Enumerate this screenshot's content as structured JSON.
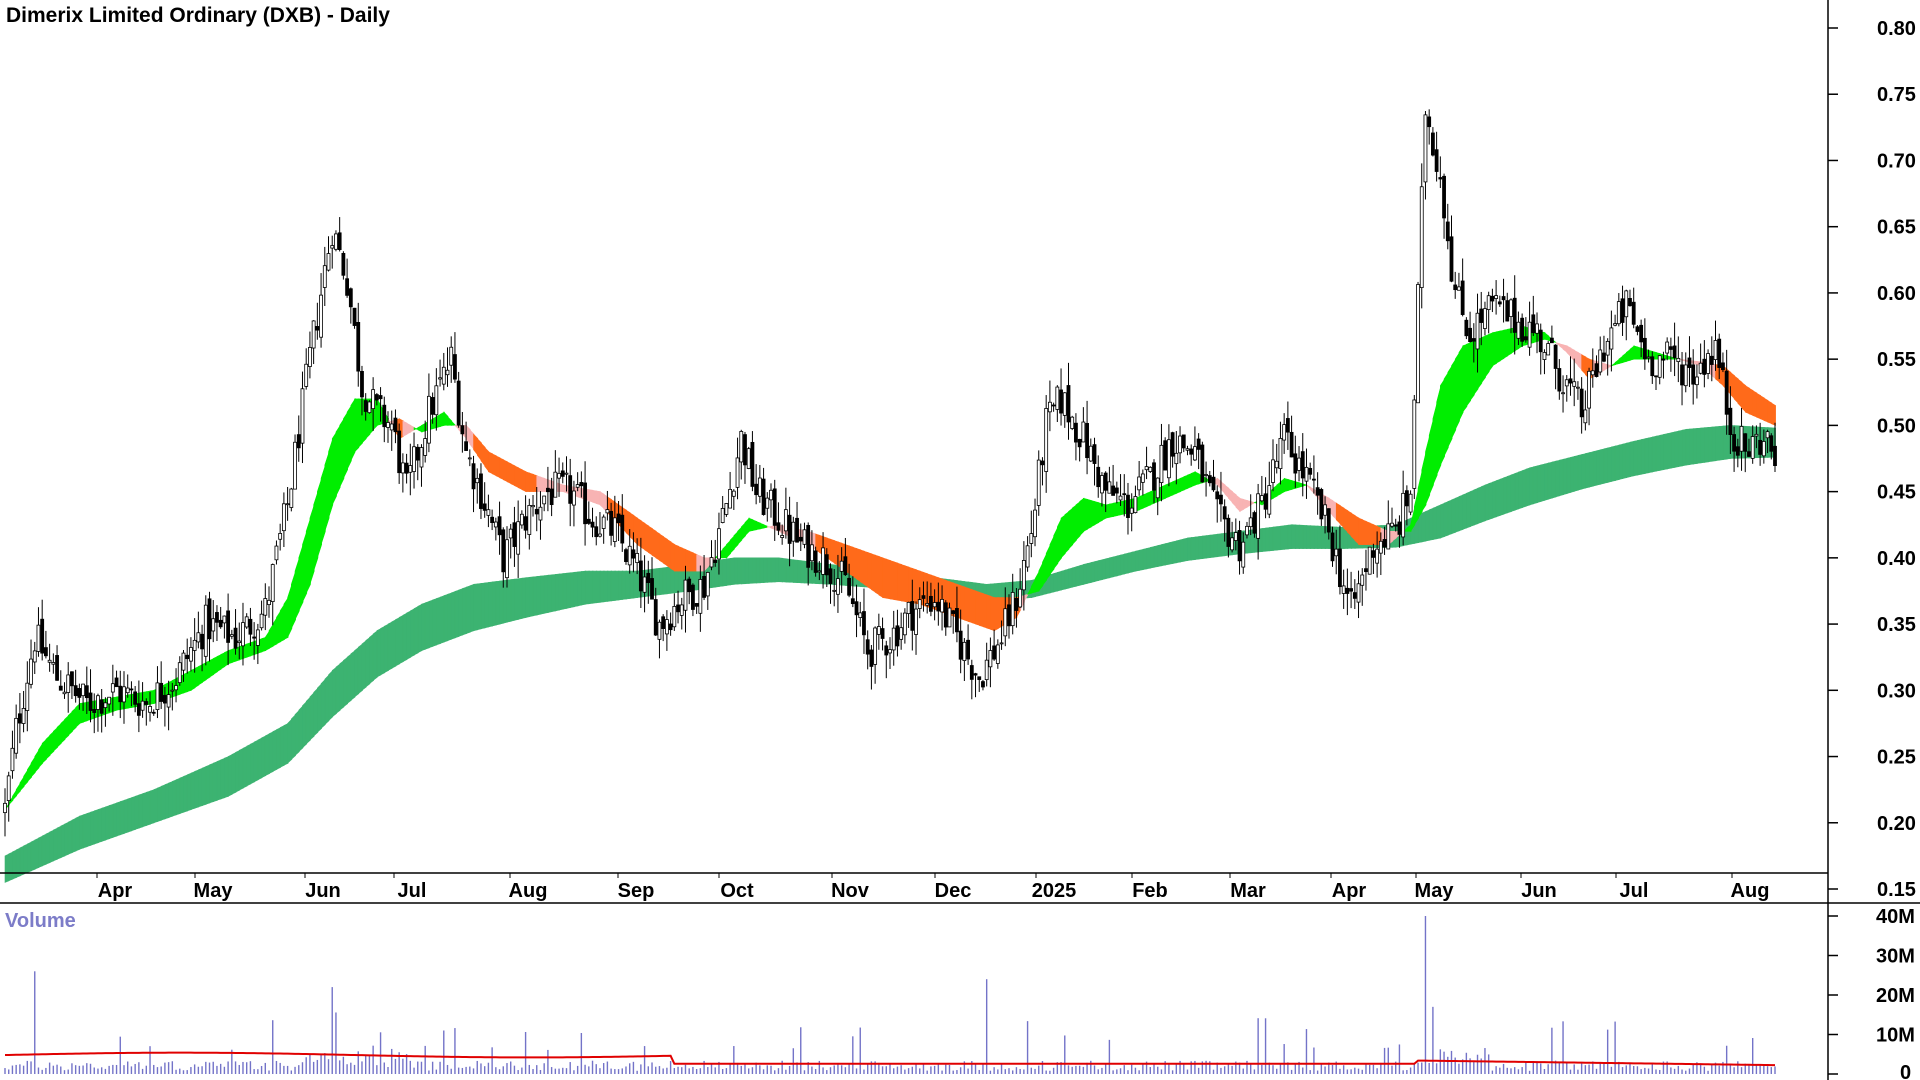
{
  "title": "Dimerix Limited Ordinary (DXB) - Daily",
  "volume_label": "Volume",
  "colors": {
    "candle": "#000000",
    "short_up": "#00ee00",
    "short_down": "#ff6a1a",
    "short_down_light": "#f8b3b3",
    "long_up": "#3cb371",
    "long_down": "#ff6a1a",
    "volume_bar": "#7373c8",
    "volume_avg": "#e00000"
  },
  "chart_data": [
    {
      "type": "candlestick",
      "title": "Dimerix Limited Ordinary (DXB) - Daily",
      "y_ticks": [
        "0.80",
        "0.75",
        "0.70",
        "0.65",
        "0.60",
        "0.55",
        "0.50",
        "0.45",
        "0.40",
        "0.35",
        "0.30",
        "0.25",
        "0.20",
        "0.15"
      ],
      "ylim": [
        0.125,
        0.82
      ],
      "x_ticks": [
        "Apr",
        "May",
        "Jun",
        "Jul",
        "Aug",
        "Sep",
        "Oct",
        "Nov",
        "Dec",
        "2025",
        "Feb",
        "Mar",
        "Apr",
        "May",
        "Jun",
        "Jul",
        "Aug"
      ],
      "close_points": [
        {
          "x": 0,
          "y": 0.21
        },
        {
          "x": 3,
          "y": 0.27
        },
        {
          "x": 8,
          "y": 0.34
        },
        {
          "x": 14,
          "y": 0.31
        },
        {
          "x": 22,
          "y": 0.29
        },
        {
          "x": 30,
          "y": 0.3
        },
        {
          "x": 38,
          "y": 0.29
        },
        {
          "x": 46,
          "y": 0.31
        },
        {
          "x": 54,
          "y": 0.35
        },
        {
          "x": 62,
          "y": 0.34
        },
        {
          "x": 70,
          "y": 0.36
        },
        {
          "x": 76,
          "y": 0.44
        },
        {
          "x": 82,
          "y": 0.55
        },
        {
          "x": 88,
          "y": 0.65
        },
        {
          "x": 92,
          "y": 0.61
        },
        {
          "x": 96,
          "y": 0.53
        },
        {
          "x": 100,
          "y": 0.51
        },
        {
          "x": 104,
          "y": 0.5
        },
        {
          "x": 108,
          "y": 0.45
        },
        {
          "x": 114,
          "y": 0.51
        },
        {
          "x": 120,
          "y": 0.55
        },
        {
          "x": 124,
          "y": 0.48
        },
        {
          "x": 128,
          "y": 0.45
        },
        {
          "x": 134,
          "y": 0.4
        },
        {
          "x": 140,
          "y": 0.43
        },
        {
          "x": 146,
          "y": 0.45
        },
        {
          "x": 152,
          "y": 0.45
        },
        {
          "x": 158,
          "y": 0.43
        },
        {
          "x": 164,
          "y": 0.42
        },
        {
          "x": 170,
          "y": 0.39
        },
        {
          "x": 176,
          "y": 0.35
        },
        {
          "x": 182,
          "y": 0.37
        },
        {
          "x": 188,
          "y": 0.38
        },
        {
          "x": 194,
          "y": 0.44
        },
        {
          "x": 198,
          "y": 0.49
        },
        {
          "x": 202,
          "y": 0.45
        },
        {
          "x": 208,
          "y": 0.43
        },
        {
          "x": 214,
          "y": 0.41
        },
        {
          "x": 220,
          "y": 0.4
        },
        {
          "x": 226,
          "y": 0.38
        },
        {
          "x": 232,
          "y": 0.33
        },
        {
          "x": 238,
          "y": 0.34
        },
        {
          "x": 244,
          "y": 0.36
        },
        {
          "x": 250,
          "y": 0.37
        },
        {
          "x": 256,
          "y": 0.34
        },
        {
          "x": 262,
          "y": 0.31
        },
        {
          "x": 268,
          "y": 0.34
        },
        {
          "x": 272,
          "y": 0.37
        },
        {
          "x": 276,
          "y": 0.42
        },
        {
          "x": 280,
          "y": 0.5
        },
        {
          "x": 284,
          "y": 0.52
        },
        {
          "x": 290,
          "y": 0.49
        },
        {
          "x": 296,
          "y": 0.45
        },
        {
          "x": 302,
          "y": 0.44
        },
        {
          "x": 308,
          "y": 0.46
        },
        {
          "x": 314,
          "y": 0.49
        },
        {
          "x": 320,
          "y": 0.48
        },
        {
          "x": 326,
          "y": 0.43
        },
        {
          "x": 332,
          "y": 0.41
        },
        {
          "x": 338,
          "y": 0.44
        },
        {
          "x": 344,
          "y": 0.49
        },
        {
          "x": 350,
          "y": 0.46
        },
        {
          "x": 356,
          "y": 0.42
        },
        {
          "x": 362,
          "y": 0.36
        },
        {
          "x": 368,
          "y": 0.41
        },
        {
          "x": 374,
          "y": 0.42
        },
        {
          "x": 378,
          "y": 0.45
        },
        {
          "x": 382,
          "y": 0.74
        },
        {
          "x": 386,
          "y": 0.69
        },
        {
          "x": 390,
          "y": 0.6
        },
        {
          "x": 394,
          "y": 0.57
        },
        {
          "x": 400,
          "y": 0.59
        },
        {
          "x": 406,
          "y": 0.58
        },
        {
          "x": 412,
          "y": 0.57
        },
        {
          "x": 418,
          "y": 0.54
        },
        {
          "x": 424,
          "y": 0.51
        },
        {
          "x": 430,
          "y": 0.56
        },
        {
          "x": 436,
          "y": 0.59
        },
        {
          "x": 442,
          "y": 0.55
        },
        {
          "x": 448,
          "y": 0.55
        },
        {
          "x": 454,
          "y": 0.54
        },
        {
          "x": 460,
          "y": 0.56
        },
        {
          "x": 464,
          "y": 0.5
        },
        {
          "x": 468,
          "y": 0.48
        },
        {
          "x": 472,
          "y": 0.49
        },
        {
          "x": 476,
          "y": 0.48
        }
      ],
      "short_ribbon": [
        {
          "x": 0,
          "a": 0.21,
          "b": 0.21
        },
        {
          "x": 10,
          "a": 0.26,
          "b": 0.245
        },
        {
          "x": 20,
          "a": 0.29,
          "b": 0.275
        },
        {
          "x": 30,
          "a": 0.295,
          "b": 0.285
        },
        {
          "x": 40,
          "a": 0.3,
          "b": 0.29
        },
        {
          "x": 50,
          "a": 0.315,
          "b": 0.3
        },
        {
          "x": 60,
          "a": 0.33,
          "b": 0.32
        },
        {
          "x": 70,
          "a": 0.34,
          "b": 0.33
        },
        {
          "x": 76,
          "a": 0.37,
          "b": 0.34
        },
        {
          "x": 82,
          "a": 0.43,
          "b": 0.38
        },
        {
          "x": 88,
          "a": 0.49,
          "b": 0.44
        },
        {
          "x": 94,
          "a": 0.52,
          "b": 0.48
        },
        {
          "x": 100,
          "a": 0.52,
          "b": 0.5
        },
        {
          "x": 106,
          "a": 0.49,
          "b": 0.505
        },
        {
          "x": 112,
          "a": 0.5,
          "b": 0.495
        },
        {
          "x": 118,
          "a": 0.51,
          "b": 0.5
        },
        {
          "x": 124,
          "a": 0.49,
          "b": 0.5
        },
        {
          "x": 130,
          "a": 0.465,
          "b": 0.48
        },
        {
          "x": 140,
          "a": 0.45,
          "b": 0.465
        },
        {
          "x": 150,
          "a": 0.45,
          "b": 0.455
        },
        {
          "x": 160,
          "a": 0.44,
          "b": 0.45
        },
        {
          "x": 170,
          "a": 0.41,
          "b": 0.43
        },
        {
          "x": 180,
          "a": 0.39,
          "b": 0.41
        },
        {
          "x": 188,
          "a": 0.39,
          "b": 0.4
        },
        {
          "x": 194,
          "a": 0.41,
          "b": 0.4
        },
        {
          "x": 200,
          "a": 0.43,
          "b": 0.42
        },
        {
          "x": 208,
          "a": 0.42,
          "b": 0.425
        },
        {
          "x": 216,
          "a": 0.41,
          "b": 0.42
        },
        {
          "x": 226,
          "a": 0.39,
          "b": 0.41
        },
        {
          "x": 236,
          "a": 0.37,
          "b": 0.4
        },
        {
          "x": 246,
          "a": 0.365,
          "b": 0.39
        },
        {
          "x": 256,
          "a": 0.355,
          "b": 0.38
        },
        {
          "x": 266,
          "a": 0.345,
          "b": 0.37
        },
        {
          "x": 272,
          "a": 0.355,
          "b": 0.37
        },
        {
          "x": 278,
          "a": 0.39,
          "b": 0.375
        },
        {
          "x": 284,
          "a": 0.43,
          "b": 0.4
        },
        {
          "x": 290,
          "a": 0.445,
          "b": 0.42
        },
        {
          "x": 296,
          "a": 0.44,
          "b": 0.43
        },
        {
          "x": 304,
          "a": 0.445,
          "b": 0.435
        },
        {
          "x": 312,
          "a": 0.455,
          "b": 0.445
        },
        {
          "x": 320,
          "a": 0.465,
          "b": 0.455
        },
        {
          "x": 326,
          "a": 0.455,
          "b": 0.46
        },
        {
          "x": 332,
          "a": 0.435,
          "b": 0.445
        },
        {
          "x": 338,
          "a": 0.445,
          "b": 0.44
        },
        {
          "x": 344,
          "a": 0.46,
          "b": 0.45
        },
        {
          "x": 350,
          "a": 0.455,
          "b": 0.455
        },
        {
          "x": 356,
          "a": 0.435,
          "b": 0.445
        },
        {
          "x": 364,
          "a": 0.41,
          "b": 0.43
        },
        {
          "x": 372,
          "a": 0.41,
          "b": 0.42
        },
        {
          "x": 378,
          "a": 0.425,
          "b": 0.42
        },
        {
          "x": 382,
          "a": 0.48,
          "b": 0.44
        },
        {
          "x": 386,
          "a": 0.53,
          "b": 0.47
        },
        {
          "x": 392,
          "a": 0.56,
          "b": 0.51
        },
        {
          "x": 400,
          "a": 0.57,
          "b": 0.545
        },
        {
          "x": 408,
          "a": 0.575,
          "b": 0.56
        },
        {
          "x": 414,
          "a": 0.57,
          "b": 0.565
        },
        {
          "x": 420,
          "a": 0.555,
          "b": 0.56
        },
        {
          "x": 426,
          "a": 0.535,
          "b": 0.55
        },
        {
          "x": 432,
          "a": 0.545,
          "b": 0.545
        },
        {
          "x": 438,
          "a": 0.56,
          "b": 0.55
        },
        {
          "x": 444,
          "a": 0.555,
          "b": 0.55
        },
        {
          "x": 450,
          "a": 0.55,
          "b": 0.55
        },
        {
          "x": 456,
          "a": 0.545,
          "b": 0.548
        },
        {
          "x": 462,
          "a": 0.53,
          "b": 0.545
        },
        {
          "x": 468,
          "a": 0.51,
          "b": 0.53
        },
        {
          "x": 476,
          "a": 0.5,
          "b": 0.515
        }
      ],
      "long_ribbon": [
        {
          "x": 0,
          "a": 0.175,
          "b": 0.155
        },
        {
          "x": 20,
          "a": 0.205,
          "b": 0.18
        },
        {
          "x": 40,
          "a": 0.225,
          "b": 0.2
        },
        {
          "x": 60,
          "a": 0.25,
          "b": 0.22
        },
        {
          "x": 76,
          "a": 0.275,
          "b": 0.245
        },
        {
          "x": 88,
          "a": 0.315,
          "b": 0.28
        },
        {
          "x": 100,
          "a": 0.345,
          "b": 0.31
        },
        {
          "x": 112,
          "a": 0.365,
          "b": 0.33
        },
        {
          "x": 126,
          "a": 0.38,
          "b": 0.345
        },
        {
          "x": 140,
          "a": 0.385,
          "b": 0.355
        },
        {
          "x": 156,
          "a": 0.39,
          "b": 0.365
        },
        {
          "x": 170,
          "a": 0.39,
          "b": 0.37
        },
        {
          "x": 184,
          "a": 0.395,
          "b": 0.375
        },
        {
          "x": 196,
          "a": 0.4,
          "b": 0.38
        },
        {
          "x": 208,
          "a": 0.4,
          "b": 0.382
        },
        {
          "x": 222,
          "a": 0.395,
          "b": 0.38
        },
        {
          "x": 236,
          "a": 0.39,
          "b": 0.377
        },
        {
          "x": 250,
          "a": 0.385,
          "b": 0.372
        },
        {
          "x": 264,
          "a": 0.38,
          "b": 0.368
        },
        {
          "x": 276,
          "a": 0.383,
          "b": 0.37
        },
        {
          "x": 290,
          "a": 0.395,
          "b": 0.38
        },
        {
          "x": 304,
          "a": 0.405,
          "b": 0.39
        },
        {
          "x": 318,
          "a": 0.415,
          "b": 0.398
        },
        {
          "x": 332,
          "a": 0.42,
          "b": 0.403
        },
        {
          "x": 346,
          "a": 0.425,
          "b": 0.407
        },
        {
          "x": 360,
          "a": 0.423,
          "b": 0.407
        },
        {
          "x": 374,
          "a": 0.425,
          "b": 0.408
        },
        {
          "x": 386,
          "a": 0.44,
          "b": 0.415
        },
        {
          "x": 398,
          "a": 0.455,
          "b": 0.428
        },
        {
          "x": 410,
          "a": 0.468,
          "b": 0.44
        },
        {
          "x": 424,
          "a": 0.478,
          "b": 0.452
        },
        {
          "x": 438,
          "a": 0.488,
          "b": 0.462
        },
        {
          "x": 452,
          "a": 0.497,
          "b": 0.47
        },
        {
          "x": 464,
          "a": 0.5,
          "b": 0.475
        },
        {
          "x": 476,
          "a": 0.498,
          "b": 0.476
        }
      ]
    },
    {
      "type": "bar",
      "title": "Volume",
      "y_ticks": [
        "40M",
        "30M",
        "20M",
        "10M",
        "0"
      ],
      "ylim": [
        0,
        42
      ],
      "spikes": [
        {
          "x": 8,
          "v": 26
        },
        {
          "x": 88,
          "v": 22
        },
        {
          "x": 264,
          "v": 24
        },
        {
          "x": 382,
          "v": 40
        },
        {
          "x": 384,
          "v": 17
        }
      ]
    }
  ]
}
